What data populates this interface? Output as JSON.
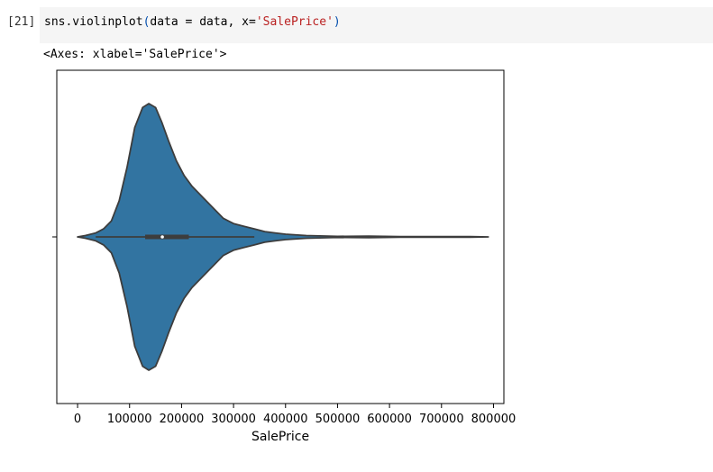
{
  "cell": {
    "prompt": "[21]",
    "code_fn": "sns.violinplot",
    "code_open": "(",
    "code_args": "data = data, x=",
    "code_str": "'SalePrice'",
    "code_close": ")"
  },
  "output": {
    "repr": "<Axes: xlabel='SalePrice'>"
  },
  "chart_data": {
    "type": "violin",
    "xlabel": "SalePrice",
    "xlim": [
      -40000,
      820000
    ],
    "xticks": [
      0,
      100000,
      200000,
      300000,
      400000,
      500000,
      600000,
      700000,
      800000
    ],
    "xtick_labels": [
      "0",
      "100000",
      "200000",
      "300000",
      "400000",
      "500000",
      "600000",
      "700000",
      "800000"
    ],
    "color": "#3274a1",
    "edge_color": "#3d3d3d",
    "density_profile": [
      [
        0,
        0.0
      ],
      [
        15000,
        0.01
      ],
      [
        35000,
        0.03
      ],
      [
        50000,
        0.06
      ],
      [
        65000,
        0.12
      ],
      [
        80000,
        0.27
      ],
      [
        95000,
        0.52
      ],
      [
        110000,
        0.82
      ],
      [
        125000,
        0.97
      ],
      [
        137000,
        1.0
      ],
      [
        150000,
        0.97
      ],
      [
        162000,
        0.86
      ],
      [
        175000,
        0.72
      ],
      [
        190000,
        0.57
      ],
      [
        205000,
        0.46
      ],
      [
        220000,
        0.38
      ],
      [
        240000,
        0.3
      ],
      [
        260000,
        0.22
      ],
      [
        280000,
        0.14
      ],
      [
        300000,
        0.1
      ],
      [
        320000,
        0.08
      ],
      [
        340000,
        0.06
      ],
      [
        360000,
        0.04
      ],
      [
        380000,
        0.03
      ],
      [
        400000,
        0.02
      ],
      [
        440000,
        0.01
      ],
      [
        500000,
        0.004
      ],
      [
        560000,
        0.006
      ],
      [
        620000,
        0.003
      ],
      [
        700000,
        0.002
      ],
      [
        755000,
        0.003
      ],
      [
        790000,
        0.0
      ]
    ],
    "box": {
      "whisker_low": 34900,
      "q1": 129975,
      "median": 163000,
      "q3": 214000,
      "whisker_high": 340000
    },
    "x_min": 0,
    "x_max": 790000
  }
}
